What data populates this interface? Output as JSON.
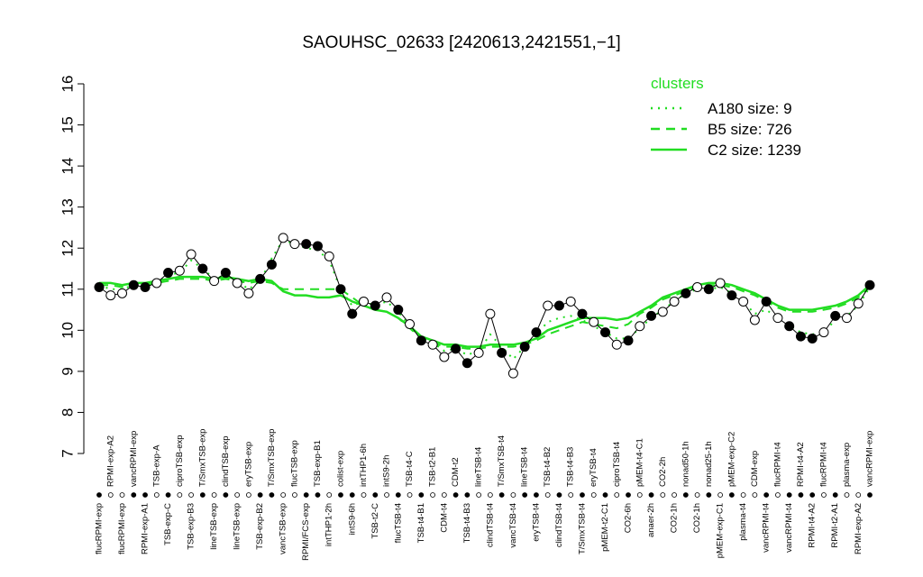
{
  "chart_data": {
    "type": "line",
    "title": "SAOUHSC_02633 [2420613,2421551,−1]",
    "categories": [
      "flucRPMI-exp",
      "RPMI-exp-A2",
      "flucRPMI-exp",
      "vancRPMI-exp",
      "RPMI-exp-A1",
      "TSB-exp-A",
      "TSB-exp-C",
      "ciproTSB-exp",
      "TSB-exp-B3",
      "T/SmxTSB-exp",
      "lineTSB-exp",
      "clindTSB-exp",
      "lineTSB-exp",
      "eryTSB-exp",
      "TSB-exp-B2",
      "T/SmxTSB-exp",
      "vancTSB-exp",
      "flucTSB-exp",
      "RPMI/FCS-exp",
      "TSB-exp-B1",
      "intTHP1-2h",
      "colist-exp",
      "intS9-6h",
      "intTHP1-6h",
      "TSB-t2-C",
      "intS9-2h",
      "flucTSB-t4",
      "TSB-t4-C",
      "TSB-t4-B1",
      "TSB-t2-B1",
      "CDM-t4",
      "CDM-t2",
      "TSB-t4-B3",
      "lineTSB-t4",
      "clindTSB-t4",
      "T/SmxTSB-t4",
      "vancTSB-t4",
      "lineTSB-t4",
      "eryTSB-t4",
      "TSB-t4-B2",
      "clindTSB-t4",
      "TSB-t4-B3",
      "T/SmxTSB-t4",
      "eryTSB-t4",
      "pMEM-t2-C1",
      "ciproTSB-t4",
      "CO2-6h",
      "pMEM-t4-C1",
      "anaer-2h",
      "CO2-2h",
      "CO2-1h",
      "nonad50-1h",
      "CO2-1h",
      "nonad25-1h",
      "pMEM-exp-C1",
      "pMEM-exp-C2",
      "plasma-t4",
      "CDM-exp",
      "vancRPMI-t4",
      "flucRPMI-t4",
      "vancRPMI-t4",
      "RPMI-t4-A2",
      "RPMI-t4-A2",
      "flucRPMI-t4",
      "RPMI-t2-A1",
      "plasma-exp",
      "RPMI-exp-A2",
      "vancRPMI-exp"
    ],
    "values": [
      11.05,
      10.85,
      10.9,
      11.1,
      11.05,
      11.15,
      11.4,
      11.45,
      11.85,
      11.5,
      11.2,
      11.4,
      11.15,
      10.9,
      11.25,
      11.6,
      12.25,
      12.1,
      12.1,
      12.05,
      11.8,
      11.0,
      10.4,
      10.7,
      10.6,
      10.8,
      10.5,
      10.15,
      9.75,
      9.65,
      9.35,
      9.55,
      9.2,
      9.45,
      10.4,
      9.45,
      8.95,
      9.6,
      9.95,
      10.6,
      10.6,
      10.7,
      10.4,
      10.2,
      9.95,
      9.65,
      9.75,
      10.1,
      10.35,
      10.45,
      10.7,
      10.9,
      11.05,
      11.0,
      11.15,
      10.85,
      10.7,
      10.25,
      10.7,
      10.3,
      10.1,
      9.85,
      9.8,
      9.95,
      10.35,
      10.3,
      10.65,
      11.1
    ],
    "point_colors": [
      "black",
      "white",
      "white",
      "black",
      "black",
      "white",
      "black",
      "white",
      "white",
      "black",
      "white",
      "black",
      "white",
      "white",
      "black",
      "black",
      "white",
      "white",
      "black",
      "black",
      "white",
      "black",
      "black",
      "white",
      "black",
      "white",
      "black",
      "white",
      "black",
      "white",
      "white",
      "black",
      "black",
      "white",
      "white",
      "black",
      "white",
      "black",
      "black",
      "white",
      "black",
      "white",
      "black",
      "white",
      "black",
      "white",
      "black",
      "white",
      "black",
      "white",
      "white",
      "black",
      "white",
      "black",
      "white",
      "black",
      "white",
      "white",
      "black",
      "white",
      "black",
      "black",
      "black",
      "white",
      "black",
      "white",
      "white",
      "black"
    ],
    "legend_title": "clusters",
    "series": [
      {
        "name": "A180 size: 9",
        "color": "#22dd22",
        "style": "dotted",
        "values": [
          11.1,
          11.0,
          11.0,
          11.1,
          11.1,
          11.15,
          11.35,
          11.4,
          11.7,
          11.5,
          11.25,
          11.35,
          11.2,
          11.0,
          11.2,
          11.75,
          12.2,
          12.1,
          12.0,
          11.95,
          11.7,
          11.0,
          10.6,
          10.7,
          10.6,
          10.7,
          10.45,
          10.1,
          9.8,
          9.7,
          9.5,
          9.55,
          9.4,
          9.5,
          9.9,
          9.6,
          9.3,
          9.6,
          9.9,
          10.2,
          10.3,
          10.35,
          10.25,
          10.1,
          9.95,
          9.8,
          9.8,
          10.05,
          10.3,
          10.5,
          10.7,
          10.9,
          11.0,
          11.0,
          11.05,
          10.9,
          10.7,
          10.4,
          10.5,
          10.3,
          10.1,
          9.95,
          9.9,
          9.95,
          10.25,
          10.35,
          10.6,
          11.05
        ]
      },
      {
        "name": "B5 size: 726",
        "color": "#22dd22",
        "style": "dashed",
        "values": [
          11.1,
          11.1,
          11.05,
          11.1,
          11.1,
          11.15,
          11.2,
          11.25,
          11.25,
          11.25,
          11.2,
          11.25,
          11.2,
          11.15,
          11.2,
          11.15,
          11.0,
          11.0,
          11.0,
          11.0,
          11.0,
          11.0,
          10.8,
          10.6,
          10.5,
          10.45,
          10.3,
          10.05,
          9.8,
          9.7,
          9.6,
          9.6,
          9.55,
          9.55,
          9.6,
          9.6,
          9.6,
          9.65,
          9.75,
          9.9,
          10.0,
          10.1,
          10.2,
          10.15,
          10.1,
          10.05,
          10.15,
          10.4,
          10.55,
          10.75,
          10.85,
          10.95,
          11.05,
          11.1,
          11.1,
          11.05,
          10.95,
          10.85,
          10.7,
          10.55,
          10.45,
          10.45,
          10.45,
          10.5,
          10.55,
          10.65,
          10.8,
          11.05
        ]
      },
      {
        "name": "C2 size: 1239",
        "color": "#22dd22",
        "style": "solid",
        "values": [
          11.15,
          11.15,
          11.1,
          11.15,
          11.15,
          11.2,
          11.25,
          11.3,
          11.3,
          11.3,
          11.25,
          11.3,
          11.25,
          11.2,
          11.25,
          11.2,
          10.95,
          10.85,
          10.85,
          10.8,
          10.8,
          10.85,
          10.7,
          10.6,
          10.5,
          10.45,
          10.3,
          10.1,
          9.85,
          9.75,
          9.65,
          9.65,
          9.6,
          9.6,
          9.65,
          9.65,
          9.65,
          9.7,
          9.8,
          10.0,
          10.1,
          10.2,
          10.3,
          10.3,
          10.3,
          10.25,
          10.3,
          10.45,
          10.6,
          10.8,
          10.9,
          11.0,
          11.1,
          11.15,
          11.15,
          11.1,
          11.0,
          10.9,
          10.75,
          10.6,
          10.5,
          10.5,
          10.5,
          10.55,
          10.6,
          10.7,
          10.85,
          11.1
        ]
      }
    ],
    "ylim": [
      7,
      16
    ],
    "yticks": [
      7,
      8,
      9,
      10,
      11,
      12,
      13,
      14,
      15,
      16
    ]
  }
}
